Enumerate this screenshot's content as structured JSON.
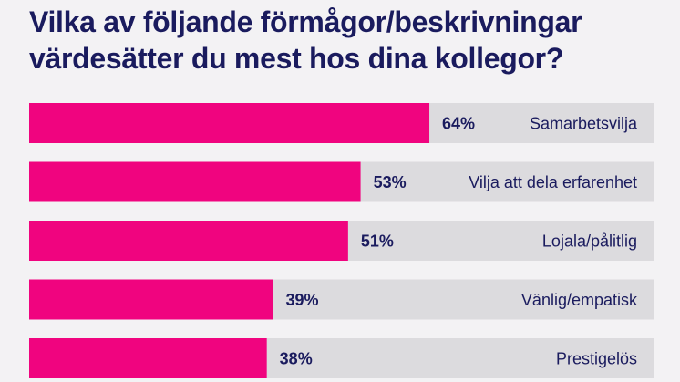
{
  "title": {
    "line1": "Vilka av följande förmågor/beskrivningar",
    "line2": "värdesätter du mest hos dina kollegor?"
  },
  "colors": {
    "bar": "#f0047f",
    "track": "#dcdbde",
    "text": "#1a1b5e",
    "background": "#f3f2f4"
  },
  "chart_data": {
    "type": "bar",
    "orientation": "horizontal",
    "categories": [
      "Samarbetsvilja",
      "Vilja att dela erfarenhet",
      "Lojala/pålitlig",
      "Vänlig/empatisk",
      "Prestigelös"
    ],
    "values": [
      64,
      53,
      51,
      39,
      38
    ],
    "value_labels": [
      "64%",
      "53%",
      "51%",
      "39%",
      "38%"
    ],
    "xlim": [
      0,
      100
    ],
    "grid": false,
    "legend": "none"
  }
}
